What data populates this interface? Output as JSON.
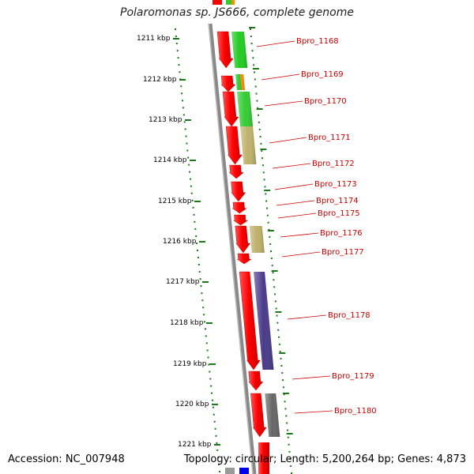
{
  "title": "Polaromonas sp. JS666, complete genome",
  "footer": {
    "accession": "Accession: NC_007948",
    "summary": "Topology: circular; Length: 5,200,264 bp; Genes: 4,873"
  },
  "colors": {
    "forward_gene": "#ff0000",
    "backbone": "#888888",
    "tick": "#1a7a1a",
    "label": "#cc0000"
  },
  "kbp_ticks": [
    "1211 kbp",
    "1212 kbp",
    "1213 kbp",
    "1214 kbp",
    "1215 kbp",
    "1216 kbp",
    "1217 kbp",
    "1218 kbp",
    "1219 kbp",
    "1220 kbp",
    "1221 kbp"
  ],
  "genes": [
    {
      "id": "Bpro_1168",
      "cog_color": "#22cc22"
    },
    {
      "id": "Bpro_1169",
      "cog_color": "#ff8c00"
    },
    {
      "id": "Bpro_1170",
      "cog_color": "#33cc33"
    },
    {
      "id": "Bpro_1171",
      "cog_color": "#bdb06a"
    },
    {
      "id": "Bpro_1172",
      "cog_color": ""
    },
    {
      "id": "Bpro_1173",
      "cog_color": ""
    },
    {
      "id": "Bpro_1174",
      "cog_color": ""
    },
    {
      "id": "Bpro_1175",
      "cog_color": ""
    },
    {
      "id": "Bpro_1176",
      "cog_color": "#bdb06a"
    },
    {
      "id": "Bpro_1177",
      "cog_color": ""
    },
    {
      "id": "Bpro_1178",
      "cog_color": "#4a3a8a"
    },
    {
      "id": "Bpro_1179",
      "cog_color": ""
    },
    {
      "id": "Bpro_1180",
      "cog_color": "#666666"
    }
  ]
}
